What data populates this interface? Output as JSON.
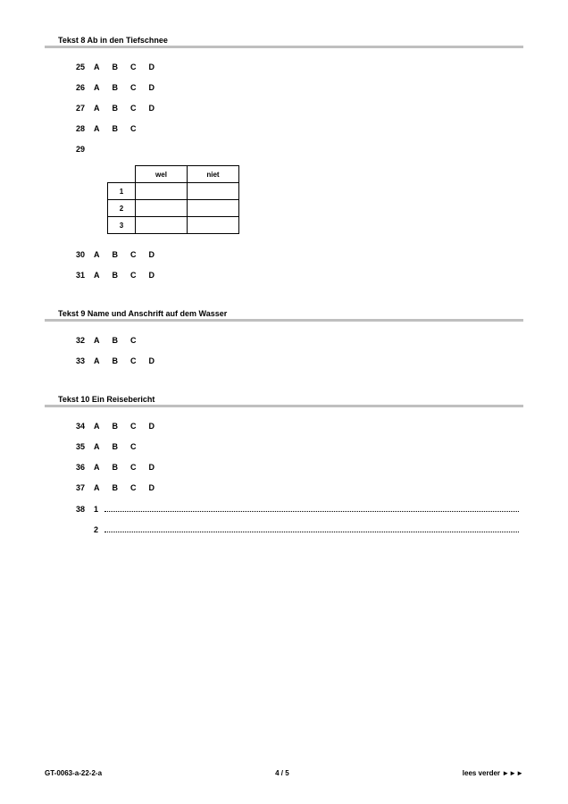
{
  "sections": [
    {
      "title": "Tekst 8  Ab in den Tiefschnee",
      "items": [
        {
          "type": "mc",
          "num": "25",
          "opts": [
            "A",
            "B",
            "C",
            "D"
          ]
        },
        {
          "type": "mc",
          "num": "26",
          "opts": [
            "A",
            "B",
            "C",
            "D"
          ]
        },
        {
          "type": "mc",
          "num": "27",
          "opts": [
            "A",
            "B",
            "C",
            "D"
          ]
        },
        {
          "type": "mc",
          "num": "28",
          "opts": [
            "A",
            "B",
            "C"
          ]
        },
        {
          "type": "table",
          "num": "29",
          "cols": [
            "wel",
            "niet"
          ],
          "rows": [
            "1",
            "2",
            "3"
          ]
        },
        {
          "type": "mc",
          "num": "30",
          "opts": [
            "A",
            "B",
            "C",
            "D"
          ]
        },
        {
          "type": "mc",
          "num": "31",
          "opts": [
            "A",
            "B",
            "C",
            "D"
          ]
        }
      ]
    },
    {
      "title": "Tekst 9  Name und Anschrift auf dem Wasser",
      "items": [
        {
          "type": "mc",
          "num": "32",
          "opts": [
            "A",
            "B",
            "C"
          ]
        },
        {
          "type": "mc",
          "num": "33",
          "opts": [
            "A",
            "B",
            "C",
            "D"
          ]
        }
      ]
    },
    {
      "title": "Tekst 10  Ein Reisebericht",
      "items": [
        {
          "type": "mc",
          "num": "34",
          "opts": [
            "A",
            "B",
            "C",
            "D"
          ]
        },
        {
          "type": "mc",
          "num": "35",
          "opts": [
            "A",
            "B",
            "C"
          ]
        },
        {
          "type": "mc",
          "num": "36",
          "opts": [
            "A",
            "B",
            "C",
            "D"
          ]
        },
        {
          "type": "mc",
          "num": "37",
          "opts": [
            "A",
            "B",
            "C",
            "D"
          ]
        },
        {
          "type": "fill",
          "num": "38",
          "lines": [
            "1",
            "2"
          ]
        }
      ]
    }
  ],
  "footer": {
    "left": "GT-0063-a-22-2-a",
    "center": "4 / 5",
    "right": "lees verder ►►►"
  }
}
